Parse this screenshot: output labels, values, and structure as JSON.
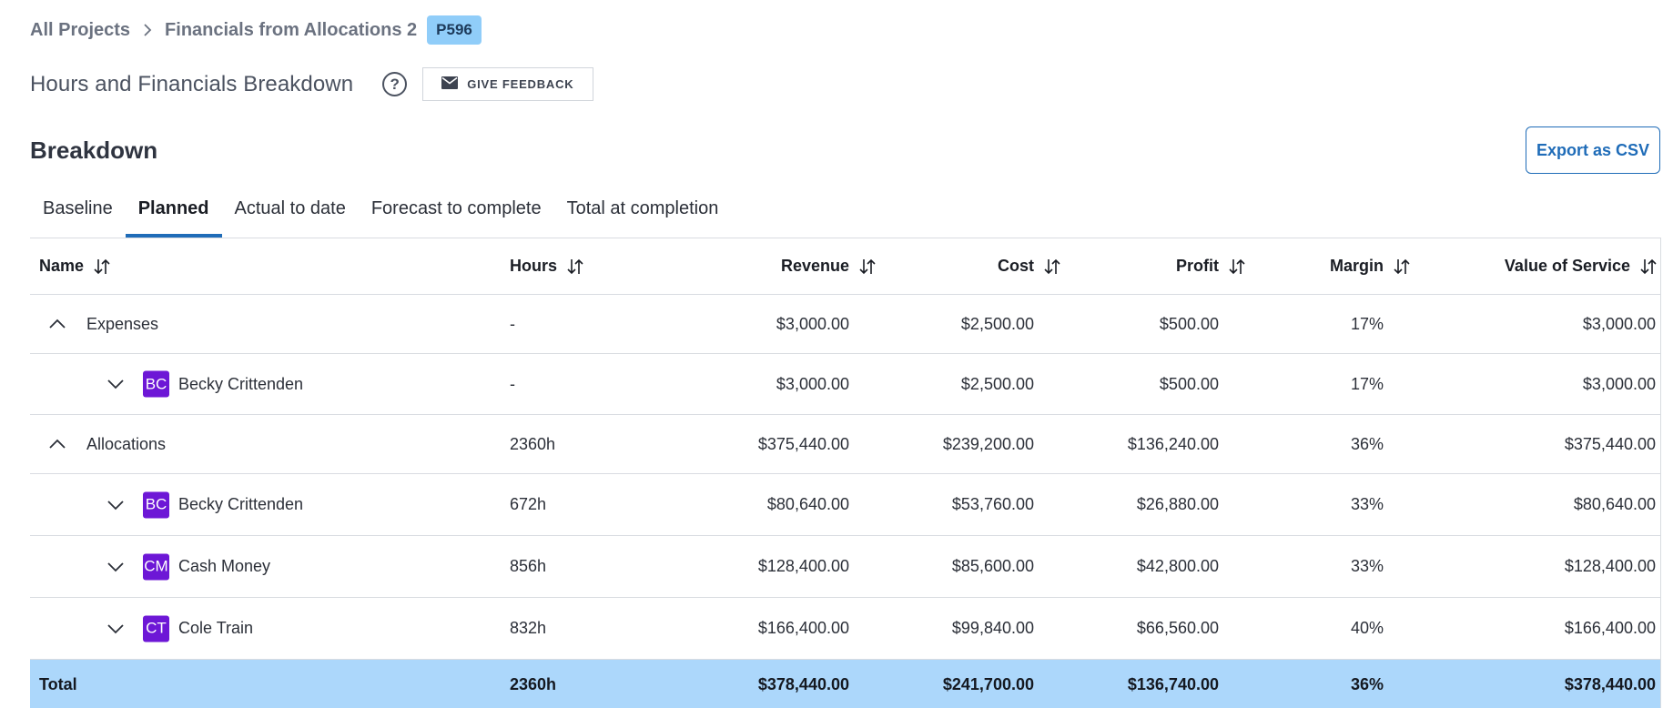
{
  "breadcrumb": {
    "root": "All Projects",
    "project": "Financials from Allocations 2",
    "project_code": "P596"
  },
  "header": {
    "title": "Hours and Financials Breakdown",
    "help": "?",
    "feedback_label": "GIVE FEEDBACK"
  },
  "section": {
    "title": "Breakdown",
    "export_label": "Export as CSV"
  },
  "tabs": [
    {
      "label": "Baseline"
    },
    {
      "label": "Planned"
    },
    {
      "label": "Actual to date"
    },
    {
      "label": "Forecast to complete"
    },
    {
      "label": "Total at completion"
    }
  ],
  "active_tab": "Planned",
  "columns": {
    "name": "Name",
    "hours": "Hours",
    "revenue": "Revenue",
    "cost": "Cost",
    "profit": "Profit",
    "margin": "Margin",
    "value": "Value of Service"
  },
  "rows": [
    {
      "type": "group",
      "name": "Expenses",
      "hours": "-",
      "revenue": "$3,000.00",
      "cost": "$2,500.00",
      "profit": "$500.00",
      "margin": "17%",
      "value": "$3,000.00"
    },
    {
      "type": "person",
      "initials": "BC",
      "name": "Becky Crittenden",
      "hours": "-",
      "revenue": "$3,000.00",
      "cost": "$2,500.00",
      "profit": "$500.00",
      "margin": "17%",
      "value": "$3,000.00"
    },
    {
      "type": "group",
      "name": "Allocations",
      "hours": "2360h",
      "revenue": "$375,440.00",
      "cost": "$239,200.00",
      "profit": "$136,240.00",
      "margin": "36%",
      "value": "$375,440.00"
    },
    {
      "type": "person",
      "initials": "BC",
      "name": "Becky Crittenden",
      "hours": "672h",
      "revenue": "$80,640.00",
      "cost": "$53,760.00",
      "profit": "$26,880.00",
      "margin": "33%",
      "value": "$80,640.00"
    },
    {
      "type": "person",
      "initials": "CM",
      "name": "Cash Money",
      "hours": "856h",
      "revenue": "$128,400.00",
      "cost": "$85,600.00",
      "profit": "$42,800.00",
      "margin": "33%",
      "value": "$128,400.00"
    },
    {
      "type": "person",
      "initials": "CT",
      "name": "Cole Train",
      "hours": "832h",
      "revenue": "$166,400.00",
      "cost": "$99,840.00",
      "profit": "$66,560.00",
      "margin": "40%",
      "value": "$166,400.00"
    }
  ],
  "total": {
    "name": "Total",
    "hours": "2360h",
    "revenue": "$378,440.00",
    "cost": "$241,700.00",
    "profit": "$136,740.00",
    "margin": "36%",
    "value": "$378,440.00"
  },
  "colors": {
    "accent": "#1f6cb8",
    "badge": "#90cdf9",
    "avatar": "#6d17d6",
    "total_row": "#acd7fb"
  },
  "icons": {
    "breadcrumb_separator": "chevron-right-icon",
    "help": "help-circle-icon",
    "feedback": "envelope-icon",
    "sort": "sort-arrows-icon",
    "expanded": "chevron-up-icon",
    "collapsed": "chevron-down-icon"
  }
}
